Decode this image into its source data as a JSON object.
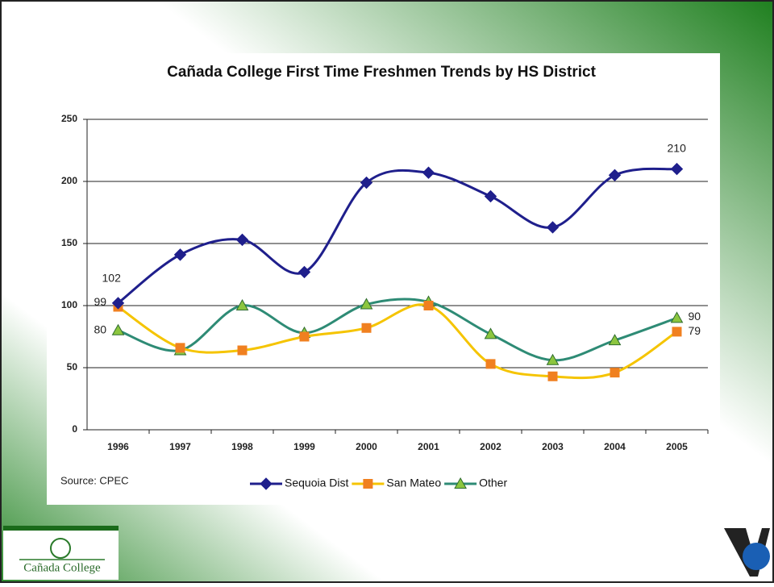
{
  "chart_data": {
    "type": "line",
    "title": "Cañada College  First Time Freshmen Trends by HS District",
    "categories": [
      "1996",
      "1997",
      "1998",
      "1999",
      "2000",
      "2001",
      "2002",
      "2003",
      "2004",
      "2005"
    ],
    "series": [
      {
        "name": "Sequoia Dist",
        "color": "#1f1f8c",
        "marker": "diamond",
        "values": [
          102,
          141,
          153,
          127,
          199,
          207,
          188,
          163,
          205,
          210
        ]
      },
      {
        "name": "San Mateo",
        "color": "#f5c400",
        "marker_color": "#f08020",
        "marker": "square",
        "values": [
          99,
          66,
          64,
          75,
          82,
          100,
          53,
          43,
          46,
          79
        ]
      },
      {
        "name": "Other",
        "color": "#2e8b75",
        "marker_color": "#8cc63f",
        "marker": "triangle",
        "values": [
          80,
          64,
          100,
          78,
          101,
          103,
          77,
          56,
          72,
          90
        ]
      }
    ],
    "ylim": [
      0,
      250
    ],
    "yticks": [
      0,
      50,
      100,
      150,
      200,
      250
    ],
    "grid": true,
    "annotation": "Source:  CPEC",
    "logo_text": "Cañada College"
  }
}
